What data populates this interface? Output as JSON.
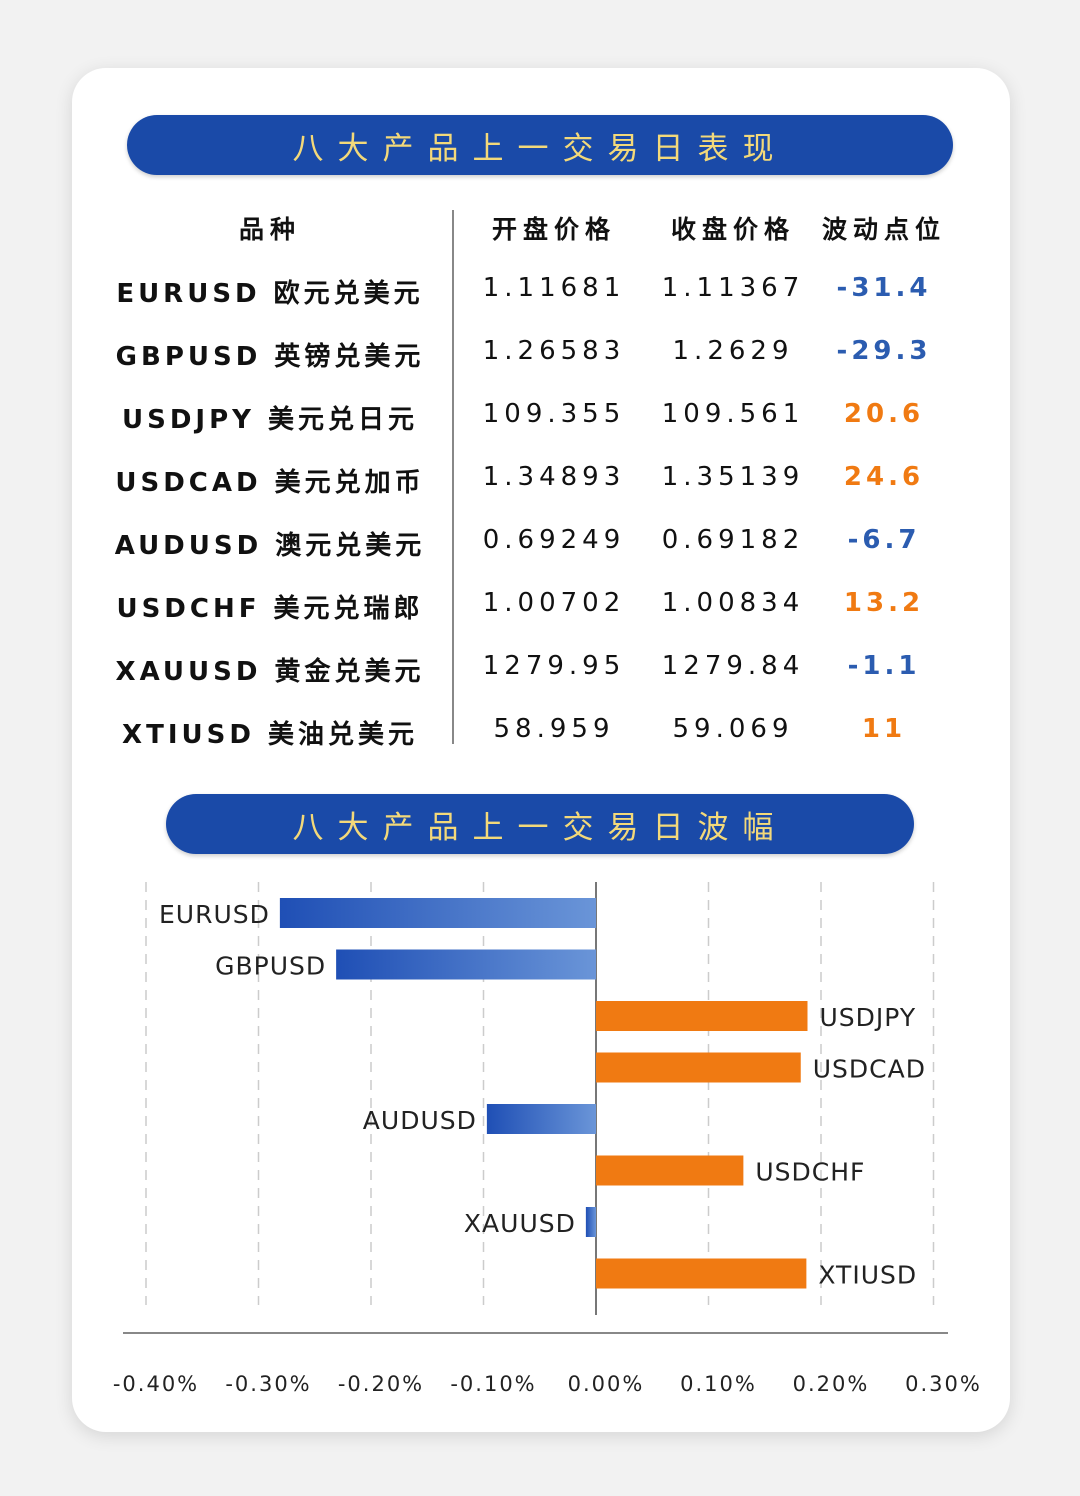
{
  "table": {
    "title": "八大产品上一交易日表现",
    "headers": [
      "品种",
      "开盘价格",
      "收盘价格",
      "波动点位"
    ],
    "rows": [
      {
        "name": "EURUSD 欧元兑美元",
        "open": "1.11681",
        "close": "1.11367",
        "pips": "-31.4"
      },
      {
        "name": "GBPUSD 英镑兑美元",
        "open": "1.26583",
        "close": "1.2629",
        "pips": "-29.3"
      },
      {
        "name": "USDJPY 美元兑日元",
        "open": "109.355",
        "close": "109.561",
        "pips": "20.6"
      },
      {
        "name": "USDCAD 美元兑加币",
        "open": "1.34893",
        "close": "1.35139",
        "pips": "24.6"
      },
      {
        "name": "AUDUSD 澳元兑美元",
        "open": "0.69249",
        "close": "0.69182",
        "pips": "-6.7"
      },
      {
        "name": "USDCHF 美元兑瑞郎",
        "open": "1.00702",
        "close": "1.00834",
        "pips": "13.2"
      },
      {
        "name": "XAUUSD 黄金兑美元",
        "open": "1279.95",
        "close": "1279.84",
        "pips": "-1.1"
      },
      {
        "name": "XTIUSD 美油兑美元",
        "open": "58.959",
        "close": "59.069",
        "pips": "11"
      }
    ]
  },
  "colors": {
    "negative": "#2b5cb0",
    "positive": "#f07a12",
    "banner": "#1a4aa8",
    "banner_text": "#f3d97a"
  },
  "chart_data": {
    "type": "bar",
    "orientation": "horizontal",
    "title": "八大产品上一交易日波幅",
    "categories": [
      "EURUSD",
      "GBPUSD",
      "USDJPY",
      "USDCAD",
      "AUDUSD",
      "USDCHF",
      "XAUUSD",
      "XTIUSD"
    ],
    "values": [
      -0.281,
      -0.231,
      0.188,
      0.182,
      -0.097,
      0.131,
      -0.009,
      0.187
    ],
    "unit": "%",
    "xlim": [
      -0.4,
      0.3
    ],
    "xticks": [
      "-0.40%",
      "-0.30%",
      "-0.20%",
      "-0.10%",
      "0.00%",
      "0.10%",
      "0.20%",
      "0.30%"
    ],
    "grid": true
  }
}
